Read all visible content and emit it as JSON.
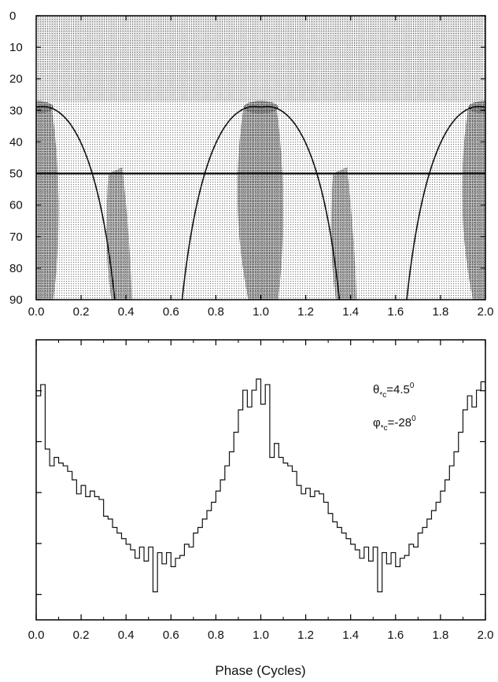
{
  "chart_data": [
    {
      "type": "heatmap",
      "title": "",
      "xlabel": "",
      "ylabel": "",
      "xlim": [
        0.0,
        2.0
      ],
      "ylim": [
        0,
        90
      ],
      "y_inverted": true,
      "x_ticks": [
        "0.0",
        "0.2",
        "0.4",
        "0.6",
        "0.8",
        "1.0",
        "1.2",
        "1.4",
        "1.6",
        "1.8",
        "2.0"
      ],
      "y_ticks": [
        "0",
        "10",
        "20",
        "30",
        "40",
        "50",
        "60",
        "70",
        "80",
        "90"
      ],
      "reference_line_y": 50,
      "arc_peaks_x": [
        0.0,
        1.0,
        2.0
      ],
      "arc_peak_y": 29,
      "colors": {
        "ink": "#111111",
        "background": "#ffffff"
      }
    },
    {
      "type": "line",
      "step": true,
      "title": "",
      "xlabel": "Phase (Cycles)",
      "ylabel": "",
      "xlim": [
        0.0,
        2.0
      ],
      "x_ticks": [
        "0.0",
        "0.2",
        "0.4",
        "0.6",
        "0.8",
        "1.0",
        "1.2",
        "1.4",
        "1.6",
        "1.8",
        "2.0"
      ],
      "annotations": {
        "theta_symbol": "θ",
        "theta_sub": "*c",
        "theta_value": "=4.5",
        "theta_sup": "0",
        "phi_symbol": "φ",
        "phi_sub": "*c",
        "phi_value": "=-28",
        "phi_sup": "0"
      },
      "x": [
        0.0,
        0.02,
        0.04,
        0.06,
        0.08,
        0.1,
        0.12,
        0.14,
        0.16,
        0.18,
        0.2,
        0.22,
        0.24,
        0.26,
        0.28,
        0.3,
        0.32,
        0.34,
        0.36,
        0.38,
        0.4,
        0.42,
        0.44,
        0.46,
        0.48,
        0.5,
        0.52,
        0.54,
        0.56,
        0.58,
        0.6,
        0.62,
        0.64,
        0.66,
        0.68,
        0.7,
        0.72,
        0.74,
        0.76,
        0.78,
        0.8,
        0.82,
        0.84,
        0.86,
        0.88,
        0.9,
        0.92,
        0.94,
        0.96,
        0.98,
        1.0,
        1.02,
        1.04,
        1.06,
        1.08,
        1.1,
        1.12,
        1.14,
        1.16,
        1.18,
        1.2,
        1.22,
        1.24,
        1.26,
        1.28,
        1.3,
        1.32,
        1.34,
        1.36,
        1.38,
        1.4,
        1.42,
        1.44,
        1.46,
        1.48,
        1.5,
        1.52,
        1.54,
        1.56,
        1.58,
        1.6,
        1.62,
        1.64,
        1.66,
        1.68,
        1.7,
        1.72,
        1.74,
        1.76,
        1.78,
        1.8,
        1.82,
        1.84,
        1.86,
        1.88,
        1.9,
        1.92,
        1.94,
        1.96,
        1.98
      ],
      "values": [
        0.8,
        0.84,
        0.61,
        0.55,
        0.58,
        0.56,
        0.55,
        0.53,
        0.5,
        0.45,
        0.48,
        0.44,
        0.46,
        0.44,
        0.43,
        0.37,
        0.36,
        0.33,
        0.31,
        0.29,
        0.27,
        0.25,
        0.22,
        0.26,
        0.21,
        0.26,
        0.1,
        0.24,
        0.2,
        0.24,
        0.19,
        0.22,
        0.23,
        0.27,
        0.26,
        0.31,
        0.33,
        0.36,
        0.39,
        0.42,
        0.46,
        0.5,
        0.55,
        0.6,
        0.67,
        0.75,
        0.82,
        0.76,
        0.82,
        0.86,
        0.77,
        0.84,
        0.58,
        0.63,
        0.58,
        0.56,
        0.55,
        0.53,
        0.48,
        0.45,
        0.47,
        0.44,
        0.46,
        0.45,
        0.42,
        0.38,
        0.35,
        0.33,
        0.31,
        0.29,
        0.27,
        0.25,
        0.22,
        0.26,
        0.21,
        0.26,
        0.1,
        0.24,
        0.2,
        0.24,
        0.19,
        0.22,
        0.23,
        0.27,
        0.26,
        0.31,
        0.33,
        0.36,
        0.39,
        0.42,
        0.46,
        0.5,
        0.55,
        0.6,
        0.67,
        0.75,
        0.8,
        0.76,
        0.82,
        0.85
      ],
      "ylim": [
        0.0,
        1.0
      ],
      "colors": {
        "line": "#111111"
      }
    }
  ]
}
